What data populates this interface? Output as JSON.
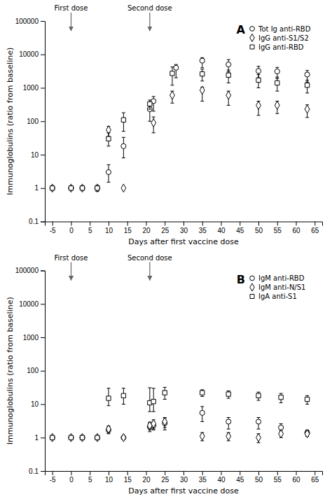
{
  "chart_data": [
    {
      "type": "scatter",
      "title": "A",
      "x_label": "Days after first vaccine dose",
      "y_label": "Immunoglobulins (ratio from baseline)",
      "log": "y",
      "legend": "upper right",
      "xlim": [
        -7,
        67
      ],
      "xticks": [
        -5,
        0,
        5,
        10,
        15,
        20,
        25,
        30,
        35,
        40,
        45,
        50,
        55,
        60,
        65
      ],
      "ylim": [
        0.1,
        100000
      ],
      "yticks": [
        0.1,
        1,
        10,
        100,
        1000,
        10000,
        100000
      ],
      "annotations": [
        {
          "text": "First dose",
          "x": 0
        },
        {
          "text": "Second dose",
          "x": 21
        }
      ],
      "series": [
        {
          "name": "Tot Ig anti-RBD",
          "marker": "circle",
          "color": "#000000",
          "x": [
            -5,
            0,
            3,
            7,
            10,
            14,
            21,
            22,
            28,
            35,
            42,
            50,
            55,
            63
          ],
          "values": [
            1,
            1,
            1,
            1,
            3,
            18,
            230,
            400,
            4000,
            6500,
            5000,
            3200,
            3100,
            2500
          ],
          "yerr_lo": [
            0,
            0,
            0,
            0.2,
            1.5,
            10,
            130,
            200,
            2000,
            2500,
            2000,
            1200,
            1200,
            1000
          ],
          "yerr_hi": [
            0,
            0,
            0,
            0.2,
            2,
            15,
            130,
            150,
            1000,
            1500,
            2000,
            1200,
            1000,
            800
          ]
        },
        {
          "name": "IgG anti-S1/S2",
          "marker": "diamond",
          "color": "#000000",
          "x": [
            -5,
            0,
            3,
            7,
            10,
            14,
            22,
            27,
            35,
            42,
            50,
            55,
            63
          ],
          "values": [
            1,
            1,
            1,
            1,
            55,
            1,
            90,
            600,
            850,
            600,
            300,
            300,
            230
          ],
          "yerr_lo": [
            0,
            0,
            0,
            0,
            20,
            0,
            45,
            250,
            450,
            300,
            150,
            130,
            100
          ],
          "yerr_hi": [
            0,
            0,
            0,
            0,
            15,
            0,
            45,
            200,
            200,
            200,
            100,
            100,
            80
          ]
        },
        {
          "name": "IgG anti-RBD",
          "marker": "square",
          "color": "#000000",
          "x": [
            -5,
            0,
            3,
            7,
            10,
            14,
            21,
            27,
            35,
            42,
            50,
            55,
            63
          ],
          "values": [
            1,
            1,
            1,
            1,
            30,
            110,
            330,
            2700,
            2600,
            2400,
            1700,
            1400,
            1200
          ],
          "yerr_lo": [
            0,
            0,
            0,
            0,
            12,
            60,
            100,
            1500,
            1000,
            1000,
            700,
            600,
            500
          ],
          "yerr_hi": [
            0,
            0,
            0,
            0,
            15,
            70,
            100,
            1500,
            1000,
            1000,
            800,
            700,
            500
          ]
        }
      ]
    },
    {
      "type": "scatter",
      "title": "B",
      "x_label": "Days after first vaccine dose",
      "y_label": "Immunoglobulins (ratio from baseline)",
      "log": "y",
      "legend": "upper right",
      "xlim": [
        -7,
        67
      ],
      "xticks": [
        -5,
        0,
        5,
        10,
        15,
        20,
        25,
        30,
        35,
        40,
        45,
        50,
        55,
        60,
        65
      ],
      "ylim": [
        0.1,
        100000
      ],
      "yticks": [
        0.1,
        1,
        10,
        100,
        1000,
        10000,
        100000
      ],
      "annotations": [
        {
          "text": "First dose",
          "x": 0
        },
        {
          "text": "Second dose",
          "x": 21
        }
      ],
      "series": [
        {
          "name": "IgM anti-RBD",
          "marker": "circle",
          "color": "#000000",
          "x": [
            -5,
            0,
            3,
            7,
            10,
            14,
            21,
            22,
            25,
            35,
            42,
            50,
            56,
            63
          ],
          "values": [
            1,
            1,
            1,
            1,
            1.7,
            1,
            2.1,
            2.3,
            2.7,
            5.5,
            3.0,
            3.0,
            2.0,
            1.4
          ],
          "yerr_lo": [
            0,
            0,
            0,
            0,
            0.4,
            0,
            0.6,
            0.6,
            1.0,
            2.5,
            1.2,
            1.2,
            0.6,
            0.3
          ],
          "yerr_hi": [
            0,
            0,
            0,
            0,
            0.4,
            0,
            0.6,
            0.6,
            1.0,
            3.0,
            1.0,
            1.0,
            0.6,
            0.3
          ]
        },
        {
          "name": "IgM anti-N/S1",
          "marker": "diamond",
          "color": "#000000",
          "x": [
            -5,
            0,
            3,
            7,
            10,
            14,
            21,
            22,
            25,
            35,
            42,
            50,
            56,
            63
          ],
          "values": [
            1,
            1,
            1,
            1,
            1.8,
            1,
            2.3,
            2.6,
            3.0,
            1.1,
            1.1,
            1.0,
            1.3,
            1.3
          ],
          "yerr_lo": [
            0,
            0,
            0,
            0,
            0.4,
            0,
            0.6,
            0.8,
            1.0,
            0.3,
            0.3,
            0.3,
            0.3,
            0.2
          ],
          "yerr_hi": [
            0,
            0,
            0,
            0,
            0.4,
            0,
            0.6,
            0.8,
            1.0,
            0.3,
            0.3,
            0.3,
            0.3,
            0.2
          ]
        },
        {
          "name": "IgA anti-S1",
          "marker": "square",
          "color": "#000000",
          "x": [
            -5,
            0,
            3,
            7,
            10,
            14,
            21,
            22,
            25,
            35,
            42,
            50,
            56,
            63
          ],
          "values": [
            1,
            1,
            1,
            1,
            15,
            18,
            11,
            12,
            22,
            22,
            20,
            18,
            16,
            14
          ],
          "yerr_lo": [
            0,
            0,
            0,
            0,
            6,
            8,
            5,
            6,
            8,
            5,
            5,
            5,
            5,
            4
          ],
          "yerr_hi": [
            0,
            0,
            0,
            0,
            15,
            12,
            20,
            18,
            10,
            5,
            5,
            5,
            5,
            4
          ]
        }
      ]
    }
  ]
}
